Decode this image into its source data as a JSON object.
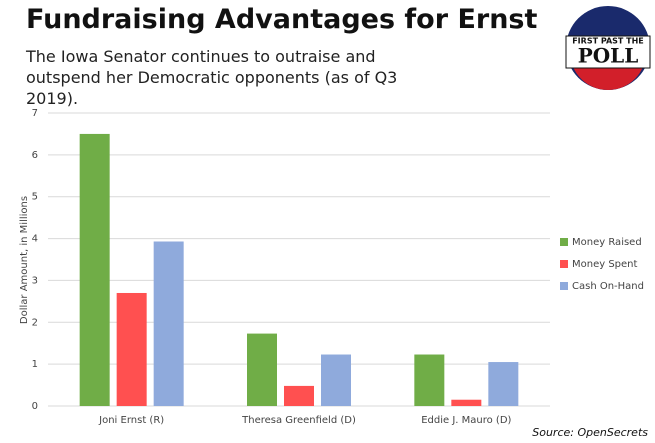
{
  "chart_data": {
    "type": "bar",
    "title": "Fundraising Advantages for Ernst",
    "subtitle": "The Iowa Senator continues to outraise and outspend her Democratic opponents (as of Q3 2019).",
    "y_label": "Dollar Amount, in Millions",
    "source": "Source: OpenSecrets",
    "logo_text": [
      "FIRST PAST THE",
      "POLL"
    ],
    "categories": [
      "Joni Ernst (R)",
      "Theresa Greenfield (D)",
      "Eddie J. Mauro (D)"
    ],
    "series": [
      {
        "name": "Money Raised",
        "color": "#70ad47",
        "values": [
          6.5,
          1.73,
          1.23
        ]
      },
      {
        "name": "Money Spent",
        "color": "#ff5050",
        "values": [
          2.7,
          0.48,
          0.15
        ]
      },
      {
        "name": "Cash On-Hand",
        "color": "#8faadc",
        "values": [
          3.93,
          1.23,
          1.05
        ]
      }
    ],
    "ylim": [
      0,
      7
    ],
    "yticks": [
      0,
      1,
      2,
      3,
      4,
      5,
      6,
      7
    ],
    "grid": true,
    "legend": "right"
  }
}
